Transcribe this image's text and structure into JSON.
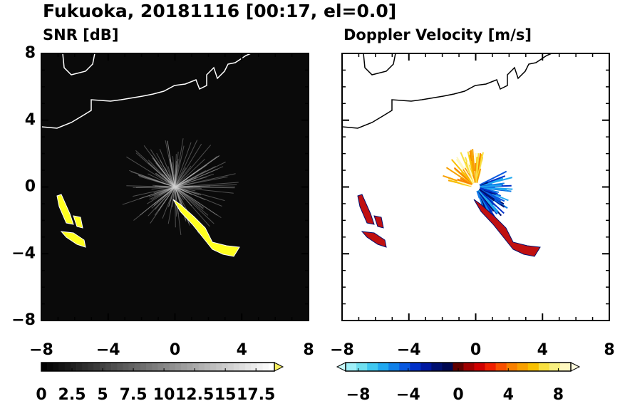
{
  "title": "Fukuoka, 20181116 [00:17, el=0.0]",
  "chart_data": [
    {
      "type": "image",
      "title": "SNR [dB]",
      "xlim": [
        -8,
        8
      ],
      "ylim": [
        -8,
        8
      ],
      "xticks": [
        {
          "value": -8,
          "label": "−8"
        },
        {
          "value": -4,
          "label": "−4"
        },
        0,
        4,
        8
      ],
      "yticks": [
        {
          "value": -8,
          "label": "−8"
        },
        {
          "value": -4,
          "label": "−4"
        },
        0,
        4,
        8
      ],
      "ytick_labels": true,
      "background": "#0a0a0a",
      "coast_color": "#ffffff",
      "echo_color": "#ffff20",
      "colorbar": {
        "lim": [
          0,
          19
        ],
        "ticks": [
          0,
          2.5,
          5,
          7.5,
          10,
          12.5,
          15,
          17.5
        ],
        "colors": [
          "#000000",
          "#ffffff"
        ],
        "extend": "max",
        "end_color": "#f8f060"
      }
    },
    {
      "type": "image",
      "title": "Doppler Velocity [m/s]",
      "xlim": [
        -8,
        8
      ],
      "ylim": [
        -8,
        8
      ],
      "xticks": [
        {
          "value": -8,
          "label": "−8"
        },
        {
          "value": -4,
          "label": "−4"
        },
        0,
        4,
        8
      ],
      "yticks": [
        -8,
        -4,
        0,
        4,
        8
      ],
      "ytick_labels": false,
      "background": "#ffffff",
      "coast_color": "#000000",
      "echo_color": "#c01010",
      "colorbar": {
        "lim": [
          -9,
          9
        ],
        "ticks": [
          {
            "value": -8,
            "label": "−8"
          },
          {
            "value": -4,
            "label": "−4"
          },
          0,
          4,
          8
        ],
        "colors": [
          "#a0f0f8",
          "#70e0f0",
          "#40c8f0",
          "#20a8f0",
          "#1080e8",
          "#0858e0",
          "#0030c8",
          "#0018a0",
          "#001070",
          "#000850",
          "#600000",
          "#a00000",
          "#d00000",
          "#f02000",
          "#f85000",
          "#f88000",
          "#f8a000",
          "#f8c000",
          "#f8e040",
          "#f8f080",
          "#fff8c0"
        ],
        "extend": "both",
        "start_color": "#c8f8f8",
        "end_color": "#fffce0"
      }
    }
  ]
}
